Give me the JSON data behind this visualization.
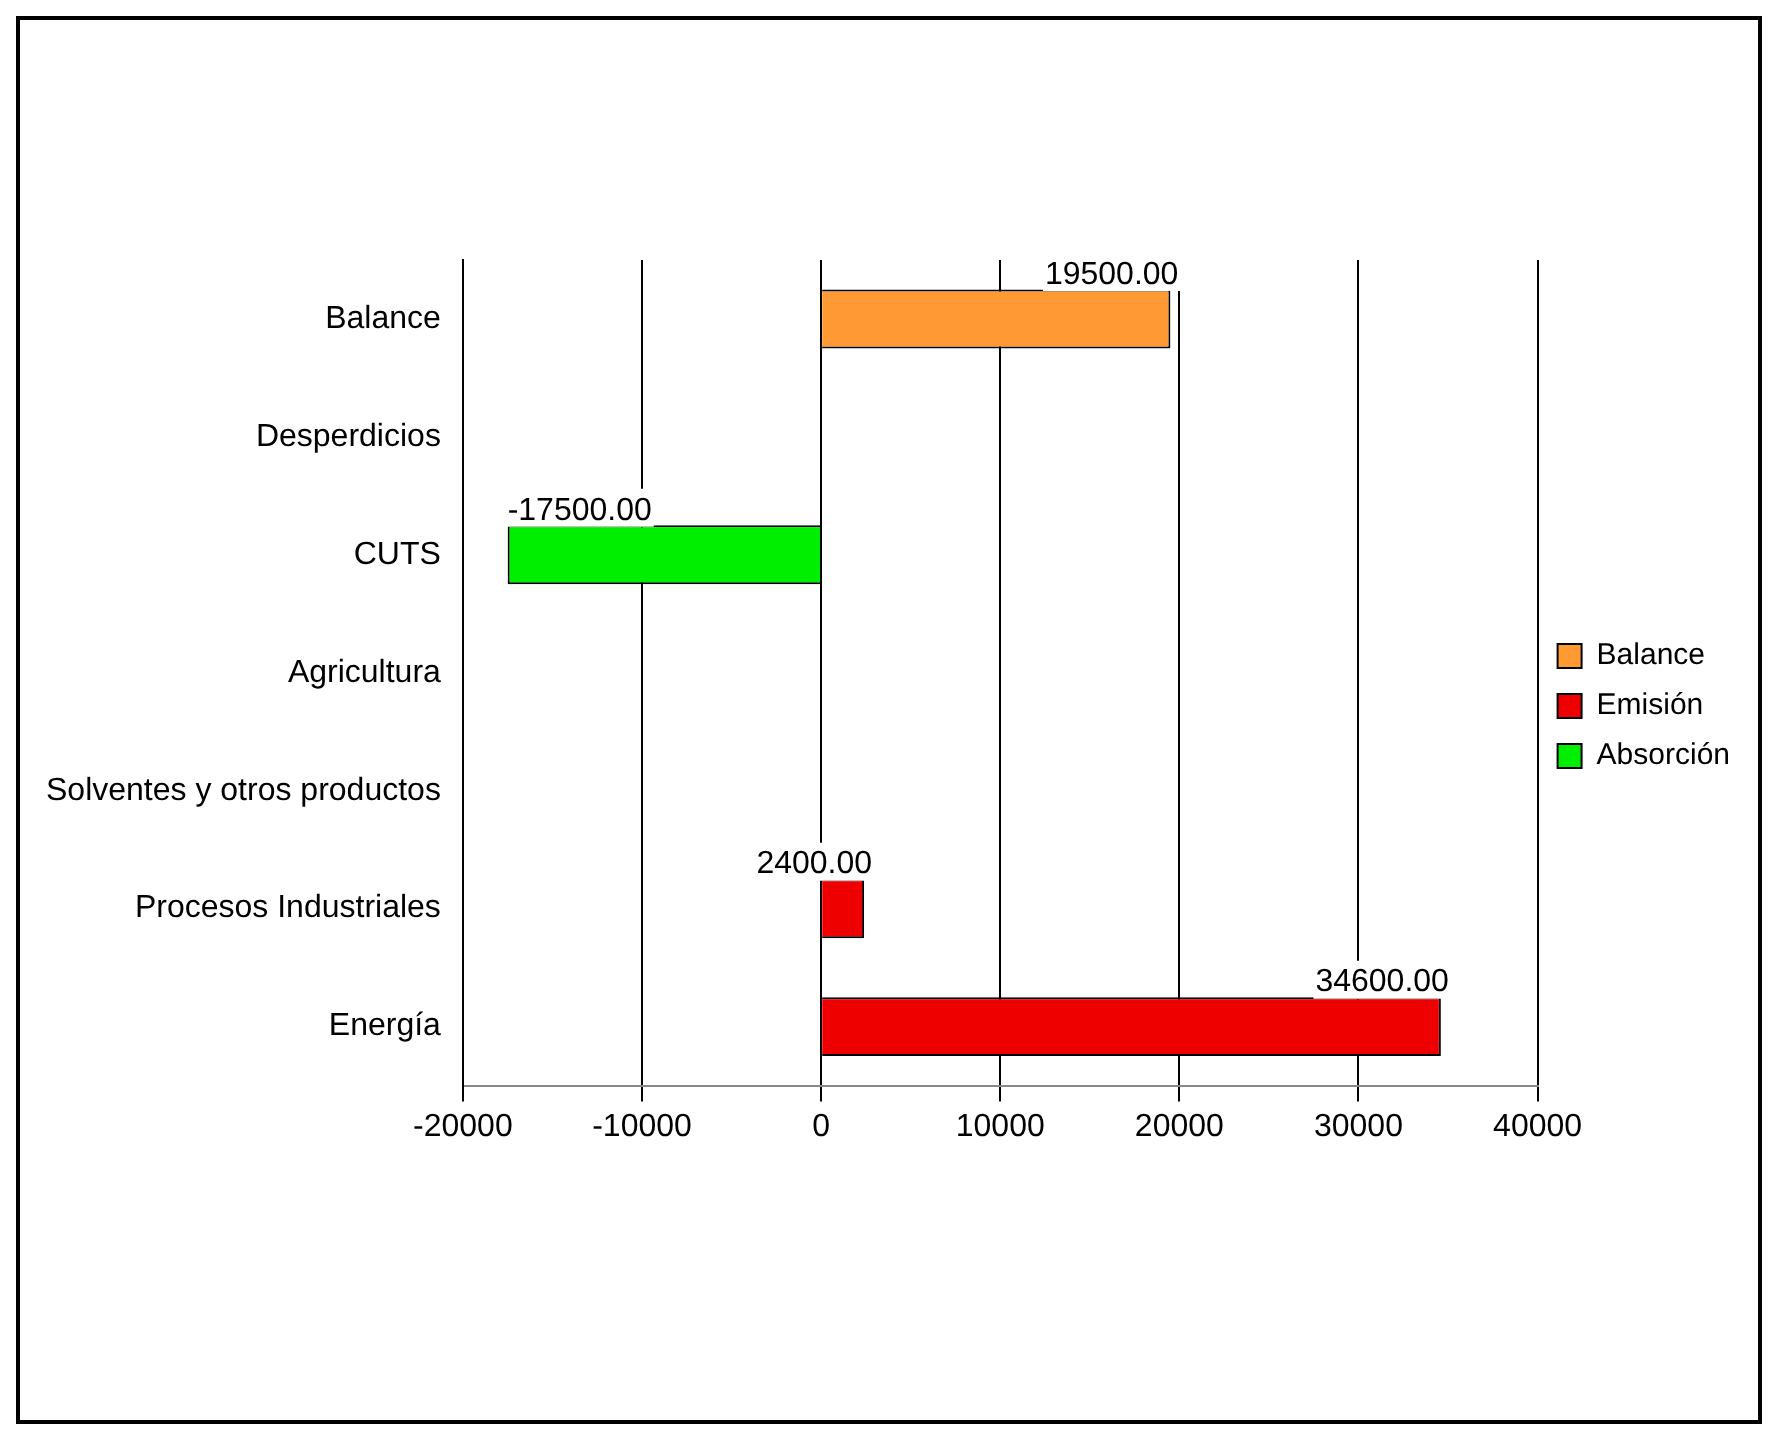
{
  "chart_data": {
    "type": "bar",
    "orientation": "horizontal",
    "stacked": true,
    "categories": [
      "Balance",
      "Desperdicios",
      "CUTS",
      "Agricultura",
      "Solventes y otros productos",
      "Procesos Industriales",
      "Energía"
    ],
    "series": [
      {
        "name": "Balance",
        "color": "#ff9933",
        "values": [
          19500,
          null,
          null,
          null,
          null,
          null,
          null
        ],
        "value_labels": [
          "19500.00",
          null,
          null,
          null,
          null,
          null,
          null
        ]
      },
      {
        "name": "Emisión",
        "color": "#ee0000",
        "values": [
          null,
          null,
          null,
          null,
          null,
          2400,
          34600
        ],
        "value_labels": [
          null,
          null,
          null,
          null,
          null,
          "2400.00",
          "34600.00"
        ]
      },
      {
        "name": "Absorción",
        "color": "#00ee00",
        "values": [
          null,
          null,
          -17500,
          null,
          null,
          null,
          null
        ],
        "value_labels": [
          null,
          null,
          "-17500.00",
          null,
          null,
          null,
          null
        ]
      }
    ],
    "xlim": [
      -20000,
      40000
    ],
    "xticks": [
      -20000,
      -10000,
      0,
      10000,
      20000,
      30000,
      40000
    ],
    "grid": "x",
    "legend": "right"
  }
}
